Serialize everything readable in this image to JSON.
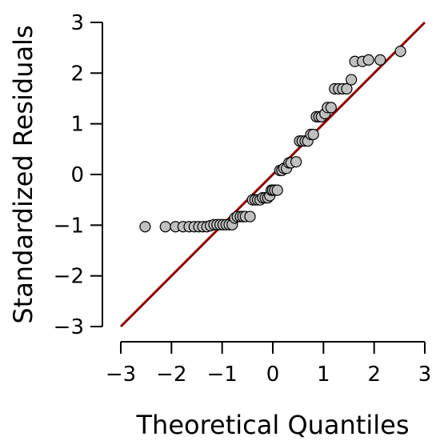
{
  "chart_data": {
    "type": "scatter",
    "title": "",
    "xlabel": "Theoretical Quantiles",
    "ylabel": "Standardized Residuals",
    "xlim": [
      -3,
      3
    ],
    "ylim": [
      -3,
      3
    ],
    "xticks": [
      "−3",
      "−2",
      "−1",
      "0",
      "1",
      "2",
      "3"
    ],
    "yticks": [
      "−3",
      "−2",
      "−1",
      "0",
      "1",
      "2",
      "3"
    ],
    "grid": false,
    "reference_line": {
      "type": "identity",
      "slope": 1,
      "intercept": 0,
      "color": "#8b0000"
    },
    "point_color": "#c0c0c0",
    "points": [
      {
        "x": -2.52,
        "y": -1.03
      },
      {
        "x": -2.12,
        "y": -1.03
      },
      {
        "x": -1.92,
        "y": -1.03
      },
      {
        "x": -1.77,
        "y": -1.03
      },
      {
        "x": -1.65,
        "y": -1.03
      },
      {
        "x": -1.55,
        "y": -1.03
      },
      {
        "x": -1.46,
        "y": -1.03
      },
      {
        "x": -1.38,
        "y": -1.03
      },
      {
        "x": -1.3,
        "y": -1.03
      },
      {
        "x": -1.23,
        "y": -1.01
      },
      {
        "x": -1.16,
        "y": -0.99
      },
      {
        "x": -1.1,
        "y": -0.99
      },
      {
        "x": -1.04,
        "y": -0.99
      },
      {
        "x": -0.98,
        "y": -0.99
      },
      {
        "x": -0.92,
        "y": -0.99
      },
      {
        "x": -0.86,
        "y": -0.99
      },
      {
        "x": -0.8,
        "y": -0.99
      },
      {
        "x": -0.75,
        "y": -0.86
      },
      {
        "x": -0.7,
        "y": -0.83
      },
      {
        "x": -0.64,
        "y": -0.83
      },
      {
        "x": -0.59,
        "y": -0.83
      },
      {
        "x": -0.54,
        "y": -0.83
      },
      {
        "x": -0.45,
        "y": -0.83
      },
      {
        "x": -0.4,
        "y": -0.5
      },
      {
        "x": -0.35,
        "y": -0.5
      },
      {
        "x": -0.3,
        "y": -0.5
      },
      {
        "x": -0.25,
        "y": -0.5
      },
      {
        "x": -0.2,
        "y": -0.46
      },
      {
        "x": -0.15,
        "y": -0.46
      },
      {
        "x": -0.1,
        "y": -0.46
      },
      {
        "x": -0.06,
        "y": -0.42
      },
      {
        "x": -0.03,
        "y": -0.31
      },
      {
        "x": 0.0,
        "y": -0.31
      },
      {
        "x": 0.04,
        "y": -0.31
      },
      {
        "x": 0.09,
        "y": -0.31
      },
      {
        "x": 0.14,
        "y": 0.08
      },
      {
        "x": 0.18,
        "y": 0.08
      },
      {
        "x": 0.22,
        "y": 0.12
      },
      {
        "x": 0.27,
        "y": 0.12
      },
      {
        "x": 0.32,
        "y": 0.23
      },
      {
        "x": 0.36,
        "y": 0.23
      },
      {
        "x": 0.46,
        "y": 0.25
      },
      {
        "x": 0.53,
        "y": 0.66
      },
      {
        "x": 0.58,
        "y": 0.66
      },
      {
        "x": 0.64,
        "y": 0.66
      },
      {
        "x": 0.69,
        "y": 0.66
      },
      {
        "x": 0.75,
        "y": 0.79
      },
      {
        "x": 0.8,
        "y": 0.79
      },
      {
        "x": 0.86,
        "y": 1.14
      },
      {
        "x": 0.91,
        "y": 1.14
      },
      {
        "x": 0.96,
        "y": 1.14
      },
      {
        "x": 1.03,
        "y": 1.2
      },
      {
        "x": 1.08,
        "y": 1.32
      },
      {
        "x": 1.15,
        "y": 1.32
      },
      {
        "x": 1.22,
        "y": 1.69
      },
      {
        "x": 1.3,
        "y": 1.69
      },
      {
        "x": 1.38,
        "y": 1.69
      },
      {
        "x": 1.46,
        "y": 1.69
      },
      {
        "x": 1.55,
        "y": 1.87
      },
      {
        "x": 1.62,
        "y": 2.23
      },
      {
        "x": 1.77,
        "y": 2.23
      },
      {
        "x": 1.89,
        "y": 2.26
      },
      {
        "x": 2.12,
        "y": 2.26
      },
      {
        "x": 2.52,
        "y": 2.43
      }
    ]
  }
}
